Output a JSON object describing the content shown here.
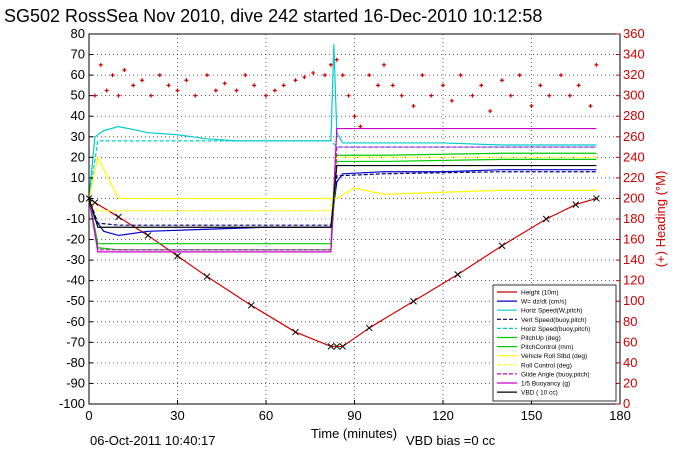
{
  "chart_data": {
    "type": "line",
    "title": "SG502 RossSea Nov 2010, dive 242 started 16-Dec-2010 10:12:58",
    "xlabel": "Time (minutes)",
    "ylabel_right": "(+) Heading (°M)",
    "xlim": [
      0,
      180
    ],
    "ylim": [
      -100,
      80
    ],
    "ylim_right": [
      0,
      360
    ],
    "xticks": [
      "0",
      "30",
      "60",
      "90",
      "120",
      "150",
      "180"
    ],
    "yticks": [
      "80",
      "70",
      "60",
      "50",
      "40",
      "30",
      "20",
      "10",
      "0",
      "-10",
      "-20",
      "-30",
      "-40",
      "-50",
      "-60",
      "-70",
      "-80",
      "-90",
      "-100"
    ],
    "yticks_right": [
      "360",
      "340",
      "320",
      "300",
      "280",
      "260",
      "240",
      "220",
      "200",
      "180",
      "160",
      "140",
      "120",
      "100",
      "80",
      "60",
      "40",
      "20",
      "0"
    ],
    "grid": true,
    "legend_position": "lower-right",
    "footer_date": "06-Oct-2011 10:40:17",
    "footer_bias": "VBD bias =0 cc",
    "series": [
      {
        "name": "Height (10m)",
        "color": "#cc0000",
        "x": [
          0,
          2,
          10,
          20,
          30,
          40,
          55,
          70,
          82,
          84,
          86,
          95,
          110,
          125,
          140,
          155,
          165,
          172
        ],
        "y": [
          0,
          -2,
          -9,
          -18,
          -28,
          -38,
          -52,
          -65,
          -72,
          -72,
          -72,
          -63,
          -50,
          -37,
          -23,
          -10,
          -3,
          0
        ]
      },
      {
        "name": "W= dz/dt (cm/s)",
        "color": "#0000cc",
        "x": [
          0,
          2,
          5,
          10,
          20,
          40,
          60,
          82,
          84,
          86,
          100,
          120,
          140,
          160,
          172
        ],
        "y": [
          0,
          -10,
          -16,
          -18,
          -16,
          -15,
          -14,
          -14,
          8,
          12,
          13,
          13,
          14,
          14,
          14
        ]
      },
      {
        "name": "Horiz Speed(W,pitch)",
        "color": "#00cccc",
        "x": [
          0,
          2,
          5,
          10,
          20,
          30,
          40,
          50,
          60,
          70,
          82,
          83,
          84,
          86,
          100,
          120,
          140,
          160,
          172
        ],
        "y": [
          0,
          30,
          33,
          35,
          32,
          31,
          29,
          28,
          28,
          28,
          28,
          75,
          32,
          27,
          27,
          27,
          26,
          26,
          26
        ]
      },
      {
        "name": "Vert Speed(buoy,pitch)",
        "color": "#000080",
        "x": [
          0,
          3,
          10,
          40,
          82,
          84,
          100,
          140,
          172
        ],
        "y": [
          0,
          -12,
          -13,
          -13,
          -13,
          11,
          12,
          13,
          13
        ]
      },
      {
        "name": "Horiz Speed(buoy,pitch)",
        "color": "#00cccc",
        "x": [
          0,
          3,
          10,
          40,
          82,
          84,
          100,
          140,
          172
        ],
        "y": [
          0,
          28,
          28,
          28,
          28,
          25,
          25,
          25,
          25
        ]
      },
      {
        "name": "PitchUp (deg)",
        "color": "#00cc00",
        "x": [
          0,
          3,
          10,
          40,
          82,
          84,
          100,
          140,
          172
        ],
        "y": [
          0,
          -22,
          -22,
          -22,
          -22,
          21,
          21,
          22,
          22
        ]
      },
      {
        "name": "PitchControl (mm)",
        "color": "#00cc00",
        "x": [
          0,
          3,
          10,
          40,
          82,
          84,
          100,
          140,
          172
        ],
        "y": [
          0,
          -24,
          -25,
          -25,
          -25,
          18,
          18,
          19,
          19
        ]
      },
      {
        "name": "Vehicle Roll Stbd (deg)",
        "color": "#ffff00",
        "x": [
          0,
          3,
          10,
          20,
          30,
          40,
          60,
          82,
          84,
          90,
          100,
          120,
          140,
          160,
          172
        ],
        "y": [
          0,
          20,
          0,
          0,
          0,
          0,
          0,
          0,
          0,
          5,
          2,
          3,
          4,
          4,
          4
        ]
      },
      {
        "name": "Roll Control (deg)",
        "color": "#ffff00",
        "x": [
          0,
          3,
          40,
          82,
          84,
          100,
          140,
          172
        ],
        "y": [
          0,
          -6,
          -6,
          -6,
          20,
          20,
          20,
          20
        ]
      },
      {
        "name": "Glide Angle (buoy,pitch)",
        "color": "#cc00cc",
        "x": [
          0,
          3,
          40,
          82,
          84,
          100,
          140,
          172
        ],
        "y": [
          0,
          -25,
          -25,
          -25,
          25,
          25,
          25,
          25
        ]
      },
      {
        "name": "1/5 Buoyancy (g)",
        "color": "#cc00cc",
        "x": [
          0,
          3,
          10,
          40,
          82,
          84,
          100,
          140,
          172
        ],
        "y": [
          0,
          -26,
          -26,
          -26,
          -26,
          34,
          34,
          34,
          34
        ]
      },
      {
        "name": "VBD ( 10 cc)",
        "color": "#000000",
        "x": [
          0,
          3,
          10,
          40,
          82,
          84,
          100,
          140,
          172
        ],
        "y": [
          0,
          -14,
          -14,
          -14,
          -14,
          16,
          16,
          16,
          16
        ]
      }
    ],
    "heading": {
      "name": "Heading (°M)",
      "color": "#cc0000",
      "axis": "right",
      "x": [
        2,
        4,
        6,
        8,
        10,
        12,
        15,
        18,
        21,
        24,
        27,
        30,
        33,
        36,
        40,
        43,
        46,
        50,
        53,
        56,
        60,
        63,
        66,
        70,
        73,
        76,
        80,
        82,
        84,
        86,
        88,
        90,
        92,
        95,
        98,
        100,
        103,
        106,
        110,
        113,
        116,
        120,
        123,
        126,
        130,
        133,
        136,
        140,
        143,
        146,
        150,
        153,
        156,
        160,
        163,
        166,
        170,
        172
      ],
      "y": [
        300,
        330,
        305,
        320,
        300,
        325,
        310,
        315,
        300,
        320,
        310,
        305,
        315,
        300,
        320,
        305,
        312,
        305,
        320,
        310,
        300,
        305,
        310,
        315,
        318,
        322,
        320,
        330,
        335,
        320,
        300,
        280,
        270,
        320,
        310,
        330,
        310,
        300,
        290,
        320,
        300,
        310,
        295,
        320,
        300,
        310,
        285,
        315,
        300,
        320,
        290,
        310,
        300,
        320,
        300,
        310,
        290,
        330
      ]
    }
  }
}
